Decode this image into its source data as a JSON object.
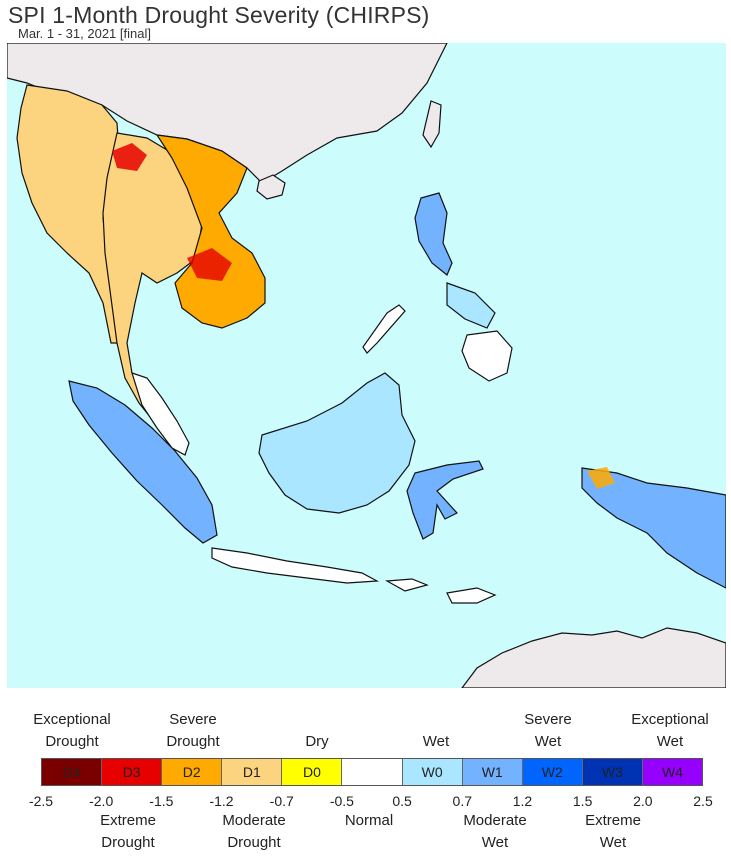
{
  "title": "SPI 1-Month Drought Severity (CHIRPS)",
  "subtitle": "Mar. 1 - 31, 2021 [final]",
  "colors": {
    "ocean": "#ccfcfc",
    "land_outside": "#eeeaec",
    "normal": "#ffffff",
    "border": "#111111"
  },
  "legend": {
    "classes": [
      {
        "label": "D4",
        "color": "#7a0000"
      },
      {
        "label": "D3",
        "color": "#e60000"
      },
      {
        "label": "D2",
        "color": "#ffaa00"
      },
      {
        "label": "D1",
        "color": "#fcd37f"
      },
      {
        "label": "D0",
        "color": "#ffff00"
      },
      {
        "label": "",
        "color": "#ffffff"
      },
      {
        "label": "W0",
        "color": "#aae6ff"
      },
      {
        "label": "W1",
        "color": "#73b2ff"
      },
      {
        "label": "W2",
        "color": "#0064ff"
      },
      {
        "label": "W3",
        "color": "#0032b4"
      },
      {
        "label": "W4",
        "color": "#9600ff"
      }
    ],
    "ticks": [
      "-2.5",
      "-2.0",
      "-1.5",
      "-1.2",
      "-0.7",
      "-0.5",
      "0.5",
      "0.7",
      "1.2",
      "1.5",
      "2.0",
      "2.5"
    ],
    "top_labels": [
      {
        "line1": "Exceptional",
        "line2": "Drought"
      },
      {
        "line1": "Severe",
        "line2": "Drought"
      },
      {
        "line1": "",
        "line2": "Dry"
      },
      {
        "line1": "",
        "line2": "Wet"
      },
      {
        "line1": "Severe",
        "line2": "Wet"
      },
      {
        "line1": "Exceptional",
        "line2": "Wet"
      }
    ],
    "bottom_labels": [
      {
        "line1": "Extreme",
        "line2": "Drought"
      },
      {
        "line1": "Moderate",
        "line2": "Drought"
      },
      {
        "line1": "Normal",
        "line2": ""
      },
      {
        "line1": "Moderate",
        "line2": "Wet"
      },
      {
        "line1": "Extreme",
        "line2": "Wet"
      }
    ]
  }
}
